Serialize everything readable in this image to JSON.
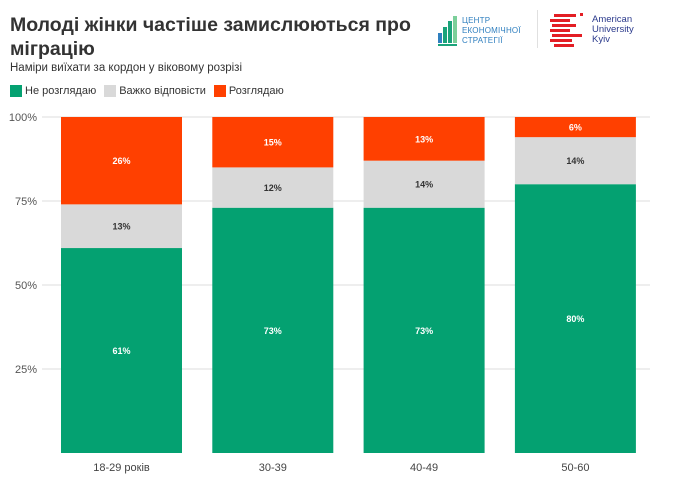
{
  "header": {
    "title": "Молоді жінки частіше замислюються про міграцію",
    "subtitle": "Наміри виїхати за кордон у віковому розрізі"
  },
  "logos": {
    "ces": {
      "lines": [
        "ЦЕНТР",
        "ЕКОНОМІЧНОЇ",
        "СТРАТЕГІЇ"
      ],
      "color": "#2f7fbf",
      "accent": "#1aa37a"
    },
    "auk": {
      "lines": [
        "American",
        "University",
        "Kyiv"
      ],
      "color": "#2b3a8c",
      "accent": "#e31e24"
    }
  },
  "chart_data": {
    "type": "bar",
    "stacked": true,
    "title": "Молоді жінки частіше замислюються про міграцію",
    "subtitle": "Наміри виїхати за кордон у віковому розрізі",
    "xlabel": "",
    "ylabel": "",
    "categories": [
      "18-29 років",
      "30-39",
      "40-49",
      "50-60"
    ],
    "series": [
      {
        "name": "Не розглядаю",
        "color": "#04a171",
        "label_color": "#ffffff",
        "values": [
          61,
          73,
          73,
          80
        ]
      },
      {
        "name": "Важко відповісти",
        "color": "#d9d9d9",
        "label_color": "#333333",
        "values": [
          13,
          12,
          14,
          14
        ]
      },
      {
        "name": "Розглядаю",
        "color": "#ff4000",
        "label_color": "#ffffff",
        "values": [
          26,
          15,
          13,
          6
        ]
      }
    ],
    "ylim": [
      0,
      100
    ],
    "yticks": [
      25,
      50,
      75,
      100
    ],
    "ytick_labels": [
      "25%",
      "50%",
      "75%",
      "100%"
    ],
    "value_suffix": "%",
    "grid": true,
    "legend_position": "top-left"
  }
}
